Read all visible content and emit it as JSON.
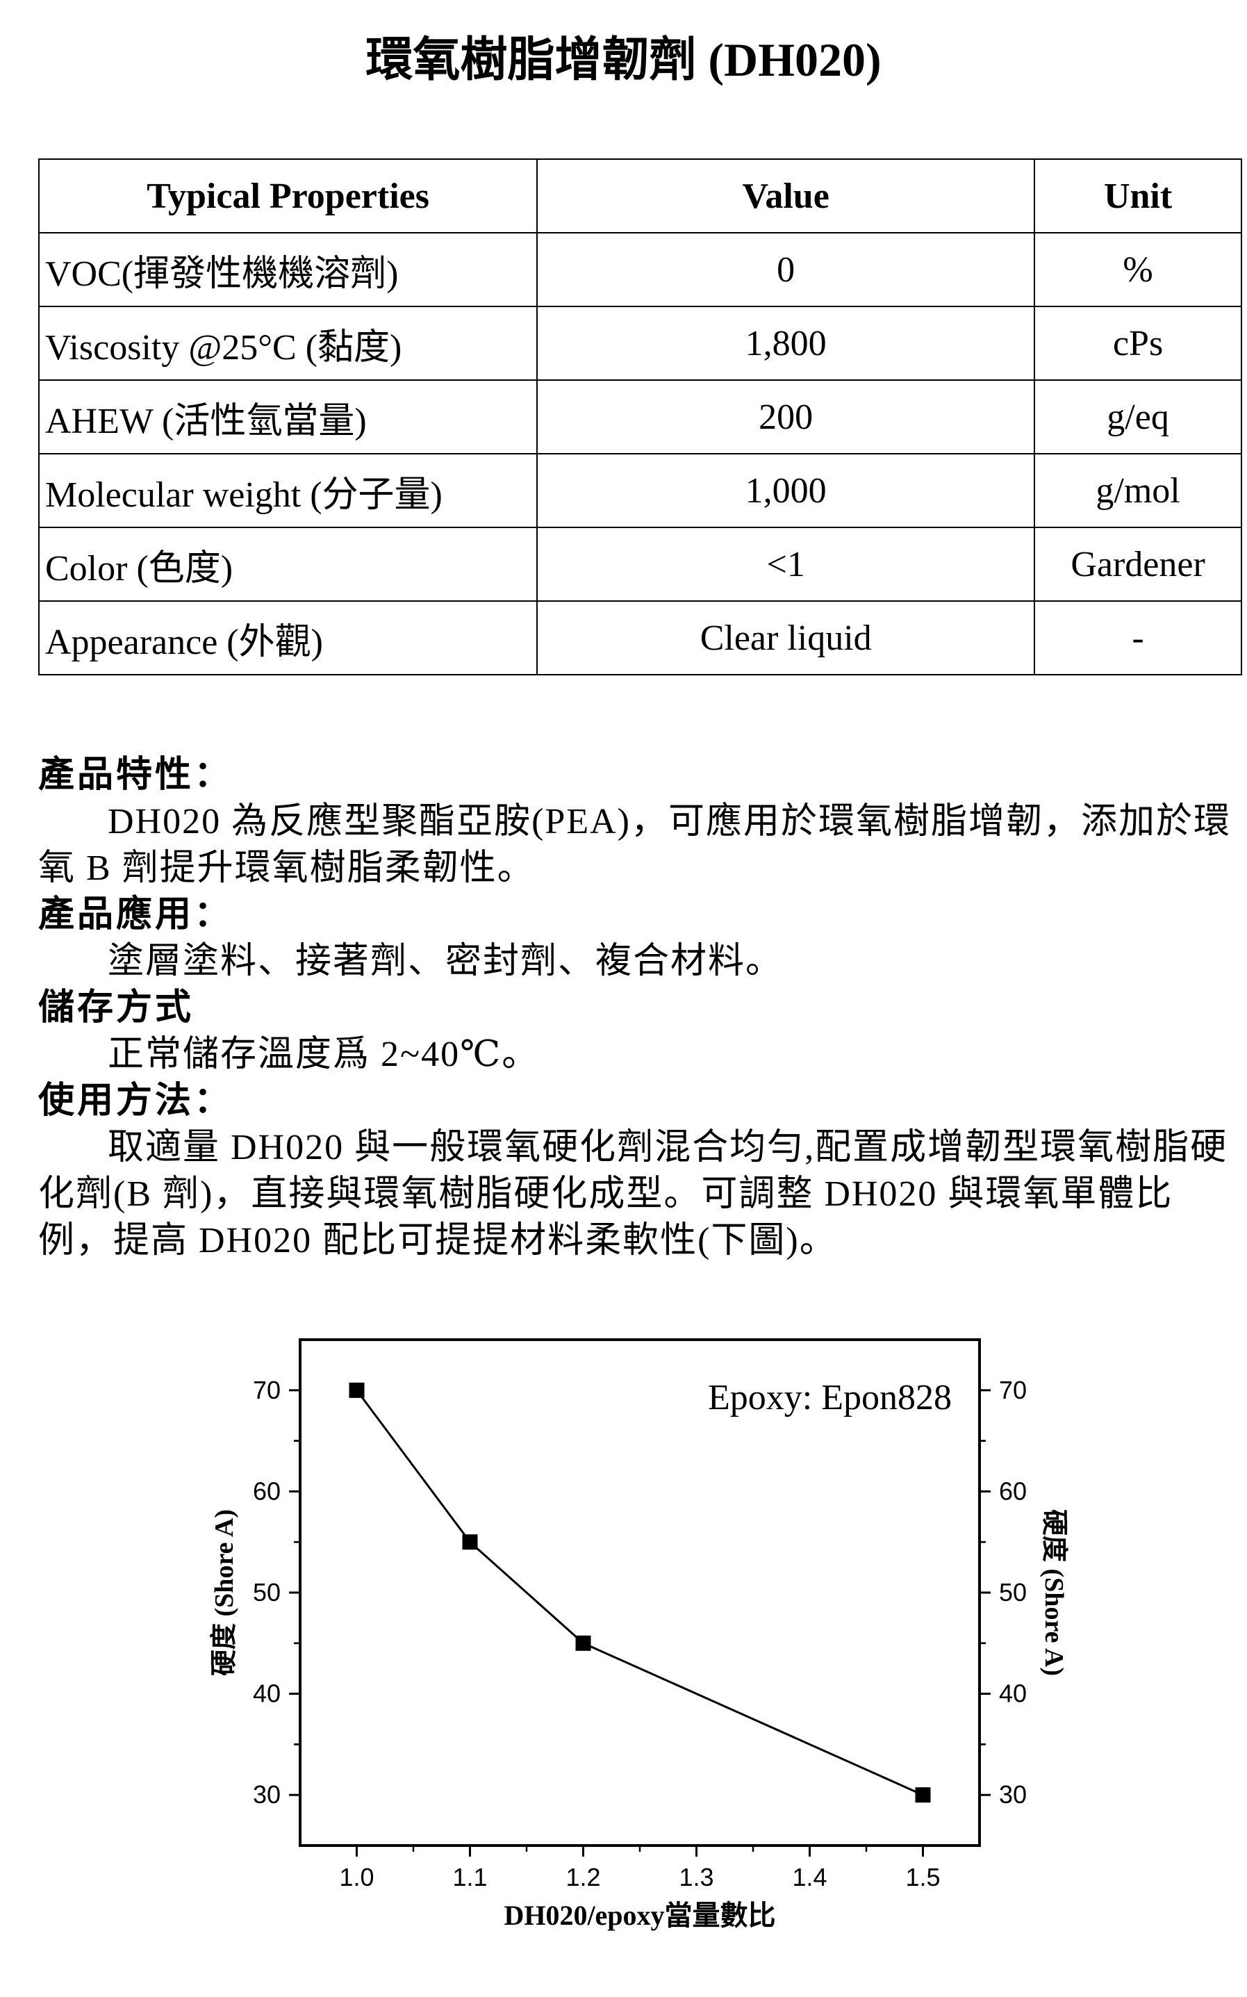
{
  "title": "環氧樹脂增韌劑 (DH020)",
  "table": {
    "headers": [
      "Typical Properties",
      "Value",
      "Unit"
    ],
    "rows": [
      {
        "property": "VOC(揮發性機機溶劑)",
        "value": "0",
        "unit": "%"
      },
      {
        "property": "Viscosity @25°C (黏度)",
        "value": "1,800",
        "unit": "cPs"
      },
      {
        "property": "AHEW (活性氫當量)",
        "value": "200",
        "unit": "g/eq"
      },
      {
        "property": "Molecular weight (分子量)",
        "value": "1,000",
        "unit": "g/mol"
      },
      {
        "property": "Color (色度)",
        "value": "<1",
        "unit": "Gardener"
      },
      {
        "property": "Appearance (外觀)",
        "value": "Clear liquid",
        "unit": "-"
      }
    ]
  },
  "sections": {
    "features_heading": "產品特性：",
    "features_text": "DH020 為反應型聚酯亞胺(PEA)，可應用於環氧樹脂增韌，添加於環氧 B 劑提升環氧樹脂柔韌性。",
    "application_heading": "產品應用：",
    "application_text": "塗層塗料、接著劑、密封劑、複合材料。",
    "storage_heading": "儲存方式",
    "storage_text": "正常儲存溫度爲 2~40℃。",
    "usage_heading": "使用方法：",
    "usage_text": "取適量 DH020 與一般環氧硬化劑混合均勻,配置成增韌型環氧樹脂硬化劑(B 劑)，直接與環氧樹脂硬化成型。可調整 DH020 與環氧單體比例，提高 DH020 配比可提提材料柔軟性(下圖)。"
  },
  "chart_data": {
    "type": "line",
    "annotation": "Epoxy: Epon828",
    "xlabel": "DH020/epoxy當量數比",
    "ylabel": "硬度 (Shore A)",
    "ylabel_right": "硬度 (Shore A)",
    "x": [
      1.0,
      1.1,
      1.2,
      1.5
    ],
    "y": [
      70,
      55,
      45,
      30
    ],
    "xlim": [
      0.95,
      1.55
    ],
    "ylim": [
      25,
      75
    ],
    "xticks": [
      "1.0",
      "1.1",
      "1.2",
      "1.3",
      "1.4",
      "1.5"
    ],
    "yticks": [
      "30",
      "40",
      "50",
      "60",
      "70"
    ],
    "marker": "square",
    "color": "#000000"
  }
}
